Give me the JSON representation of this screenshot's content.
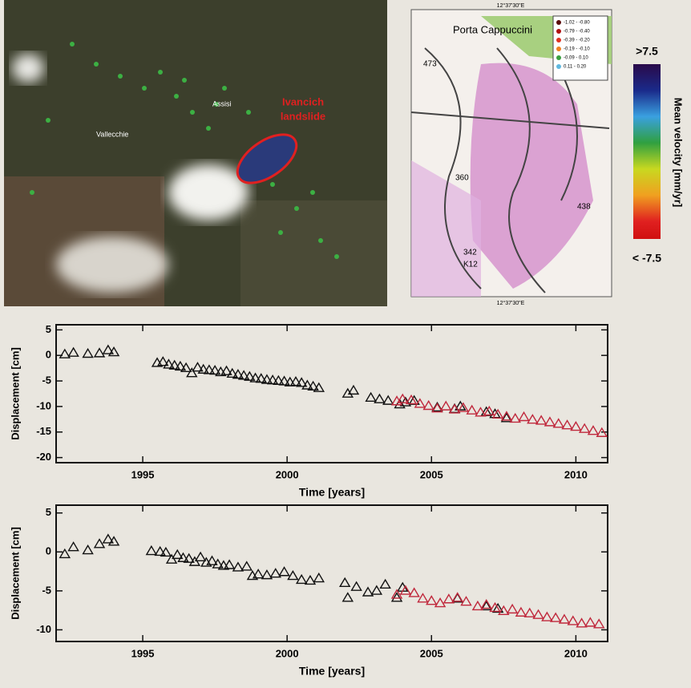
{
  "image": {
    "labels": [
      "Assisi",
      "Vallecchie"
    ],
    "landslide_label": [
      "Ivancich",
      "landslide"
    ]
  },
  "map": {
    "labels": [
      "Porta Cappuccini",
      "473",
      "360",
      "342",
      "K12",
      "438"
    ],
    "coord_top": "12°37'30\"E",
    "coord_bottom": "12°37'30\"E",
    "legend": [
      {
        "label": "-1.02 - -0.80",
        "color": "#5a0a0a"
      },
      {
        "label": "-0.79 - -0.40",
        "color": "#b01010"
      },
      {
        "label": "-0.39 - -0.20",
        "color": "#e03020"
      },
      {
        "label": "-0.19 - -0.10",
        "color": "#f08020"
      },
      {
        "label": "-0.09 - 0.10",
        "color": "#3aa040"
      },
      {
        "label": "0.11 - 0.20",
        "color": "#60b8e0"
      }
    ]
  },
  "colorbar": {
    "top_label": ">7.5",
    "bottom_label": "< -7.5",
    "title": "Mean velocity [mm/yr]"
  },
  "chart_data": [
    {
      "type": "scatter",
      "xlabel": "Time [years]",
      "ylabel": "Displacement [cm]",
      "xlim": [
        1992,
        2011.1
      ],
      "xticks": [
        1995,
        2000,
        2005,
        2010
      ],
      "ylim": [
        -21,
        6
      ],
      "yticks": [
        5,
        0,
        -5,
        -10,
        -15,
        -20
      ],
      "series": [
        {
          "color": "#111111",
          "x": [
            1992.3,
            1992.6,
            1993.1,
            1993.5,
            1993.8,
            1994.0,
            1995.5,
            1995.7,
            1995.9,
            1996.1,
            1996.3,
            1996.5,
            1996.7,
            1996.9,
            1997.1,
            1997.3,
            1997.5,
            1997.7,
            1997.9,
            1998.1,
            1998.3,
            1998.5,
            1998.7,
            1998.9,
            1999.1,
            1999.3,
            1999.5,
            1999.7,
            1999.9,
            2000.1,
            2000.3,
            2000.5,
            2000.7,
            2000.9,
            2001.1,
            2002.1,
            2002.3,
            2002.9,
            2003.2,
            2003.5,
            2003.9,
            2004.1,
            2004.4,
            2005.2,
            2005.8,
            2006.0,
            2006.9,
            2007.2,
            2007.6
          ],
          "values": [
            0.2,
            0.5,
            0.3,
            0.4,
            1.0,
            0.6,
            -1.5,
            -1.3,
            -1.8,
            -2.0,
            -2.2,
            -2.5,
            -3.5,
            -2.4,
            -2.8,
            -2.9,
            -3.0,
            -3.3,
            -3.1,
            -3.6,
            -3.8,
            -4.0,
            -4.2,
            -4.5,
            -4.6,
            -4.8,
            -4.9,
            -5.0,
            -5.1,
            -5.3,
            -5.2,
            -5.4,
            -5.9,
            -6.1,
            -6.4,
            -7.5,
            -6.9,
            -8.3,
            -8.6,
            -8.9,
            -9.6,
            -9.2,
            -8.9,
            -10.2,
            -10.5,
            -10.0,
            -11.1,
            -11.5,
            -12.3
          ]
        },
        {
          "color": "#c0283c",
          "x": [
            2003.8,
            2004.0,
            2004.3,
            2004.6,
            2004.9,
            2005.2,
            2005.5,
            2005.8,
            2006.1,
            2006.4,
            2006.7,
            2007.0,
            2007.3,
            2007.6,
            2007.9,
            2008.2,
            2008.5,
            2008.8,
            2009.1,
            2009.4,
            2009.7,
            2010.0,
            2010.3,
            2010.6,
            2010.9
          ],
          "values": [
            -9.0,
            -8.6,
            -8.8,
            -9.5,
            -9.9,
            -10.4,
            -10.0,
            -10.6,
            -10.3,
            -10.8,
            -11.2,
            -11.0,
            -11.6,
            -12.0,
            -12.4,
            -12.1,
            -12.6,
            -12.8,
            -13.1,
            -13.4,
            -13.7,
            -14.0,
            -14.4,
            -14.8,
            -15.2
          ]
        }
      ]
    },
    {
      "type": "scatter",
      "xlabel": "Time [years]",
      "ylabel": "Displacement [cm]",
      "xlim": [
        1992,
        2011.1
      ],
      "xticks": [
        1995,
        2000,
        2005,
        2010
      ],
      "ylim": [
        -11.5,
        6
      ],
      "yticks": [
        5,
        0,
        -5,
        -10
      ],
      "series": [
        {
          "color": "#111111",
          "x": [
            1992.3,
            1992.6,
            1993.1,
            1993.5,
            1993.8,
            1994.0,
            1995.3,
            1995.6,
            1995.8,
            1996.0,
            1996.2,
            1996.4,
            1996.6,
            1996.8,
            1997.0,
            1997.2,
            1997.4,
            1997.6,
            1997.8,
            1998.0,
            1998.3,
            1998.6,
            1998.8,
            1999.0,
            1999.3,
            1999.6,
            1999.9,
            2000.2,
            2000.5,
            2000.8,
            2001.1,
            2002.0,
            2002.1,
            2002.4,
            2002.8,
            2003.1,
            2003.4,
            2003.8,
            2004.0,
            2005.9,
            2006.9,
            2007.3
          ],
          "values": [
            -0.3,
            0.6,
            0.2,
            1.0,
            1.6,
            1.3,
            0.1,
            0.0,
            -0.1,
            -1.0,
            -0.4,
            -0.8,
            -0.9,
            -1.3,
            -0.7,
            -1.4,
            -1.2,
            -1.6,
            -1.8,
            -1.7,
            -2.0,
            -1.9,
            -3.1,
            -2.9,
            -3.0,
            -2.8,
            -2.6,
            -3.1,
            -3.6,
            -3.7,
            -3.4,
            -4.0,
            -5.9,
            -4.5,
            -5.2,
            -5.0,
            -4.2,
            -5.9,
            -4.6,
            -6.0,
            -7.0,
            -7.3
          ]
        },
        {
          "color": "#c0283c",
          "x": [
            2003.8,
            2004.1,
            2004.4,
            2004.7,
            2005.0,
            2005.3,
            2005.6,
            2005.9,
            2006.2,
            2006.6,
            2006.9,
            2007.2,
            2007.5,
            2007.8,
            2008.1,
            2008.4,
            2008.7,
            2009.0,
            2009.3,
            2009.6,
            2009.9,
            2010.2,
            2010.5,
            2010.8
          ],
          "values": [
            -5.5,
            -5.0,
            -5.3,
            -6.0,
            -6.3,
            -6.6,
            -6.1,
            -5.9,
            -6.4,
            -7.0,
            -6.8,
            -7.2,
            -7.6,
            -7.4,
            -7.8,
            -7.9,
            -8.1,
            -8.4,
            -8.5,
            -8.7,
            -8.9,
            -9.2,
            -9.1,
            -9.3
          ]
        }
      ]
    }
  ]
}
